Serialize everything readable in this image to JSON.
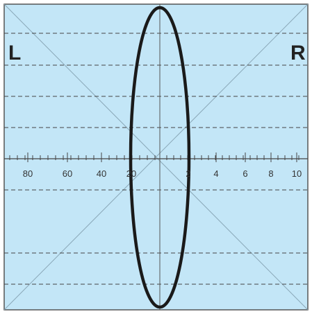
{
  "colors": {
    "background": "#c3e6f7",
    "frame": "#555555",
    "ellipse": "#1a1a1a",
    "grid": "#444444",
    "diagonal": "#8aa8b8"
  },
  "side_labels": {
    "left": "L",
    "right": "R"
  },
  "axis": {
    "left_ticks": [
      "80",
      "60",
      "40",
      "20"
    ],
    "right_ticks": [
      "2",
      "4",
      "6",
      "8",
      "10"
    ]
  }
}
